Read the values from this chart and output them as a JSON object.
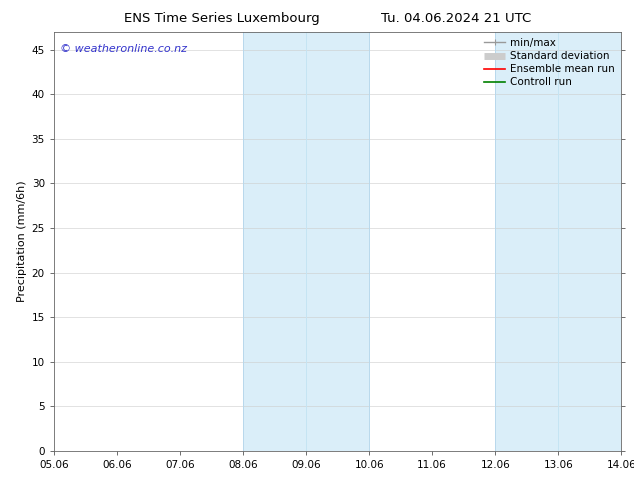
{
  "title_left": "ENS Time Series Luxembourg",
  "title_right": "Tu. 04.06.2024 21 UTC",
  "ylabel": "Precipitation (mm/6h)",
  "watermark": "© weatheronline.co.nz",
  "xlim_left": 5.06,
  "xlim_right": 14.06,
  "ylim_bottom": 0,
  "ylim_top": 47,
  "yticks": [
    0,
    5,
    10,
    15,
    20,
    25,
    30,
    35,
    40,
    45
  ],
  "xtick_labels": [
    "05.06",
    "06.06",
    "07.06",
    "08.06",
    "09.06",
    "10.06",
    "11.06",
    "12.06",
    "13.06",
    "14.06"
  ],
  "xtick_positions": [
    5.06,
    6.06,
    7.06,
    8.06,
    9.06,
    10.06,
    11.06,
    12.06,
    13.06,
    14.06
  ],
  "shaded_regions": [
    {
      "xmin": 8.06,
      "xmax": 10.06,
      "color": "#daeef9"
    },
    {
      "xmin": 12.06,
      "xmax": 14.06,
      "color": "#daeef9"
    }
  ],
  "vertical_lines_in_shade": [
    {
      "x": 9.06,
      "color": "#c5e4f3",
      "lw": 0.7
    },
    {
      "x": 13.06,
      "color": "#c5e4f3",
      "lw": 0.7
    }
  ],
  "legend_entries": [
    {
      "label": "min/max",
      "color": "#999999",
      "lw": 1.0,
      "marker": "|-"
    },
    {
      "label": "Standard deviation",
      "color": "#cccccc",
      "lw": 5,
      "marker": "box"
    },
    {
      "label": "Ensemble mean run",
      "color": "red",
      "lw": 1.2
    },
    {
      "label": "Controll run",
      "color": "green",
      "lw": 1.2
    }
  ],
  "background_color": "#ffffff",
  "plot_bg_color": "#ffffff",
  "watermark_color": "#3333cc",
  "title_fontsize": 9.5,
  "ylabel_fontsize": 8,
  "tick_fontsize": 7.5,
  "legend_fontsize": 7.5,
  "watermark_fontsize": 8
}
